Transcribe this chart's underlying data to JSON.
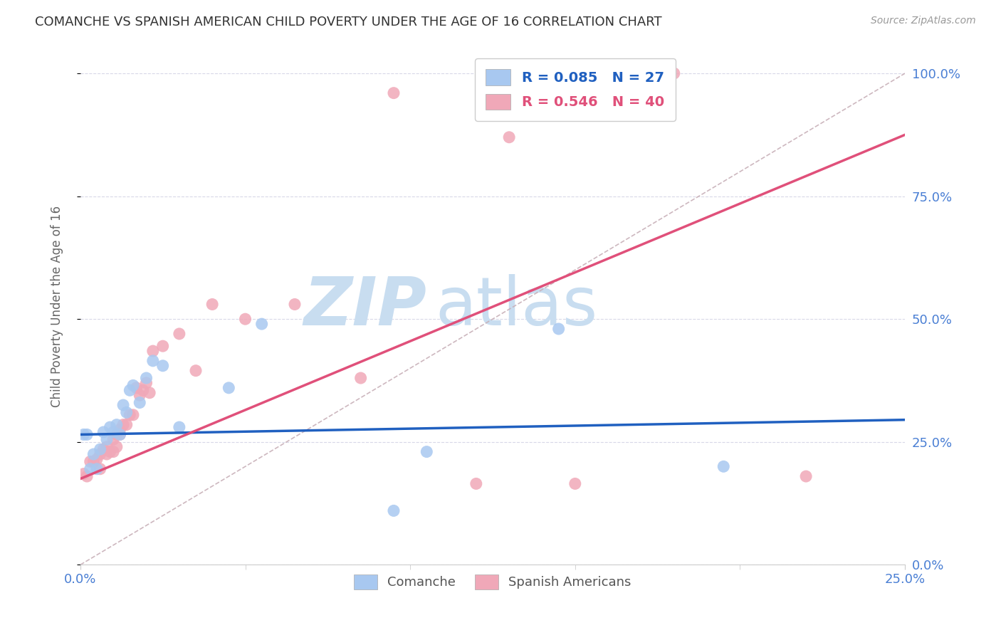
{
  "title": "COMANCHE VS SPANISH AMERICAN CHILD POVERTY UNDER THE AGE OF 16 CORRELATION CHART",
  "source": "Source: ZipAtlas.com",
  "ylabel": "Child Poverty Under the Age of 16",
  "legend_entry1_label": "R = 0.085   N = 27",
  "legend_entry2_label": "R = 0.546   N = 40",
  "legend_label1": "Comanche",
  "legend_label2": "Spanish Americans",
  "comanche_color": "#a8c8f0",
  "spanish_color": "#f0a8b8",
  "comanche_line_color": "#2060c0",
  "spanish_line_color": "#e0507a",
  "dashed_line_color": "#c8b0b8",
  "watermark_zip_color": "#c8ddf0",
  "watermark_atlas_color": "#c8ddf0",
  "background_color": "#ffffff",
  "grid_color": "#d8d8e8",
  "title_color": "#333333",
  "axis_label_color": "#4a7fd4",
  "comanche_x": [
    0.001,
    0.002,
    0.003,
    0.004,
    0.005,
    0.006,
    0.007,
    0.008,
    0.009,
    0.01,
    0.011,
    0.012,
    0.013,
    0.014,
    0.015,
    0.016,
    0.018,
    0.02,
    0.022,
    0.025,
    0.03,
    0.045,
    0.055,
    0.095,
    0.105,
    0.145,
    0.195
  ],
  "comanche_y": [
    0.265,
    0.265,
    0.195,
    0.225,
    0.195,
    0.235,
    0.27,
    0.255,
    0.28,
    0.27,
    0.285,
    0.265,
    0.325,
    0.31,
    0.355,
    0.365,
    0.33,
    0.38,
    0.415,
    0.405,
    0.28,
    0.36,
    0.49,
    0.11,
    0.23,
    0.48,
    0.2
  ],
  "spanish_x": [
    0.001,
    0.002,
    0.003,
    0.004,
    0.005,
    0.006,
    0.006,
    0.007,
    0.008,
    0.008,
    0.009,
    0.01,
    0.01,
    0.011,
    0.011,
    0.012,
    0.012,
    0.013,
    0.014,
    0.015,
    0.016,
    0.017,
    0.018,
    0.019,
    0.02,
    0.021,
    0.022,
    0.025,
    0.03,
    0.035,
    0.04,
    0.05,
    0.065,
    0.085,
    0.095,
    0.12,
    0.13,
    0.15,
    0.18,
    0.22
  ],
  "spanish_y": [
    0.185,
    0.18,
    0.21,
    0.21,
    0.215,
    0.195,
    0.225,
    0.235,
    0.225,
    0.24,
    0.23,
    0.255,
    0.23,
    0.265,
    0.24,
    0.275,
    0.265,
    0.285,
    0.285,
    0.305,
    0.305,
    0.36,
    0.345,
    0.355,
    0.37,
    0.35,
    0.435,
    0.445,
    0.47,
    0.395,
    0.53,
    0.5,
    0.53,
    0.38,
    0.96,
    0.165,
    0.87,
    0.165,
    1.0,
    0.18
  ],
  "comanche_line_y0": 0.265,
  "comanche_line_y1": 0.295,
  "spanish_line_y0": 0.175,
  "spanish_line_y1": 0.875,
  "x_min": 0.0,
  "x_max": 0.25,
  "y_min": 0.0,
  "y_max": 1.05
}
